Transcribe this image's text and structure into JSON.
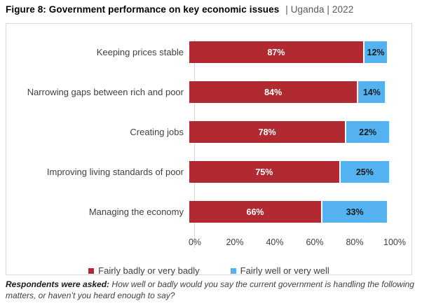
{
  "title": {
    "main": "Figure 8: Government performance on key economic issues",
    "subtitle": "| Uganda | 2022"
  },
  "chart_data": {
    "type": "bar",
    "orientation": "horizontal",
    "stacked": true,
    "title": "Figure 8: Government performance on key economic issues | Uganda | 2022",
    "categories": [
      "Keeping prices stable",
      "Narrowing gaps between rich and poor",
      "Creating jobs",
      "Improving living standards of poor",
      "Managing the economy"
    ],
    "series": [
      {
        "name": "Fairly badly or very badly",
        "color": "#B22A31",
        "label_color": "#ffffff",
        "values": [
          87,
          84,
          78,
          75,
          66
        ]
      },
      {
        "name": "Fairly well or very well",
        "color": "#54B2F0",
        "label_color": "#1a1a1a",
        "values": [
          12,
          14,
          22,
          25,
          33
        ]
      }
    ],
    "x_ticks": [
      "0%",
      "20%",
      "40%",
      "60%",
      "80%",
      "100%"
    ],
    "xlim": [
      0,
      100
    ],
    "value_suffix": "%",
    "grid": false,
    "legend_position": "bottom"
  },
  "footnote": {
    "lead": "Respondents were asked:",
    "text": "How well or badly would you say the current government is handling the following matters, or haven’t you heard enough to say?"
  }
}
